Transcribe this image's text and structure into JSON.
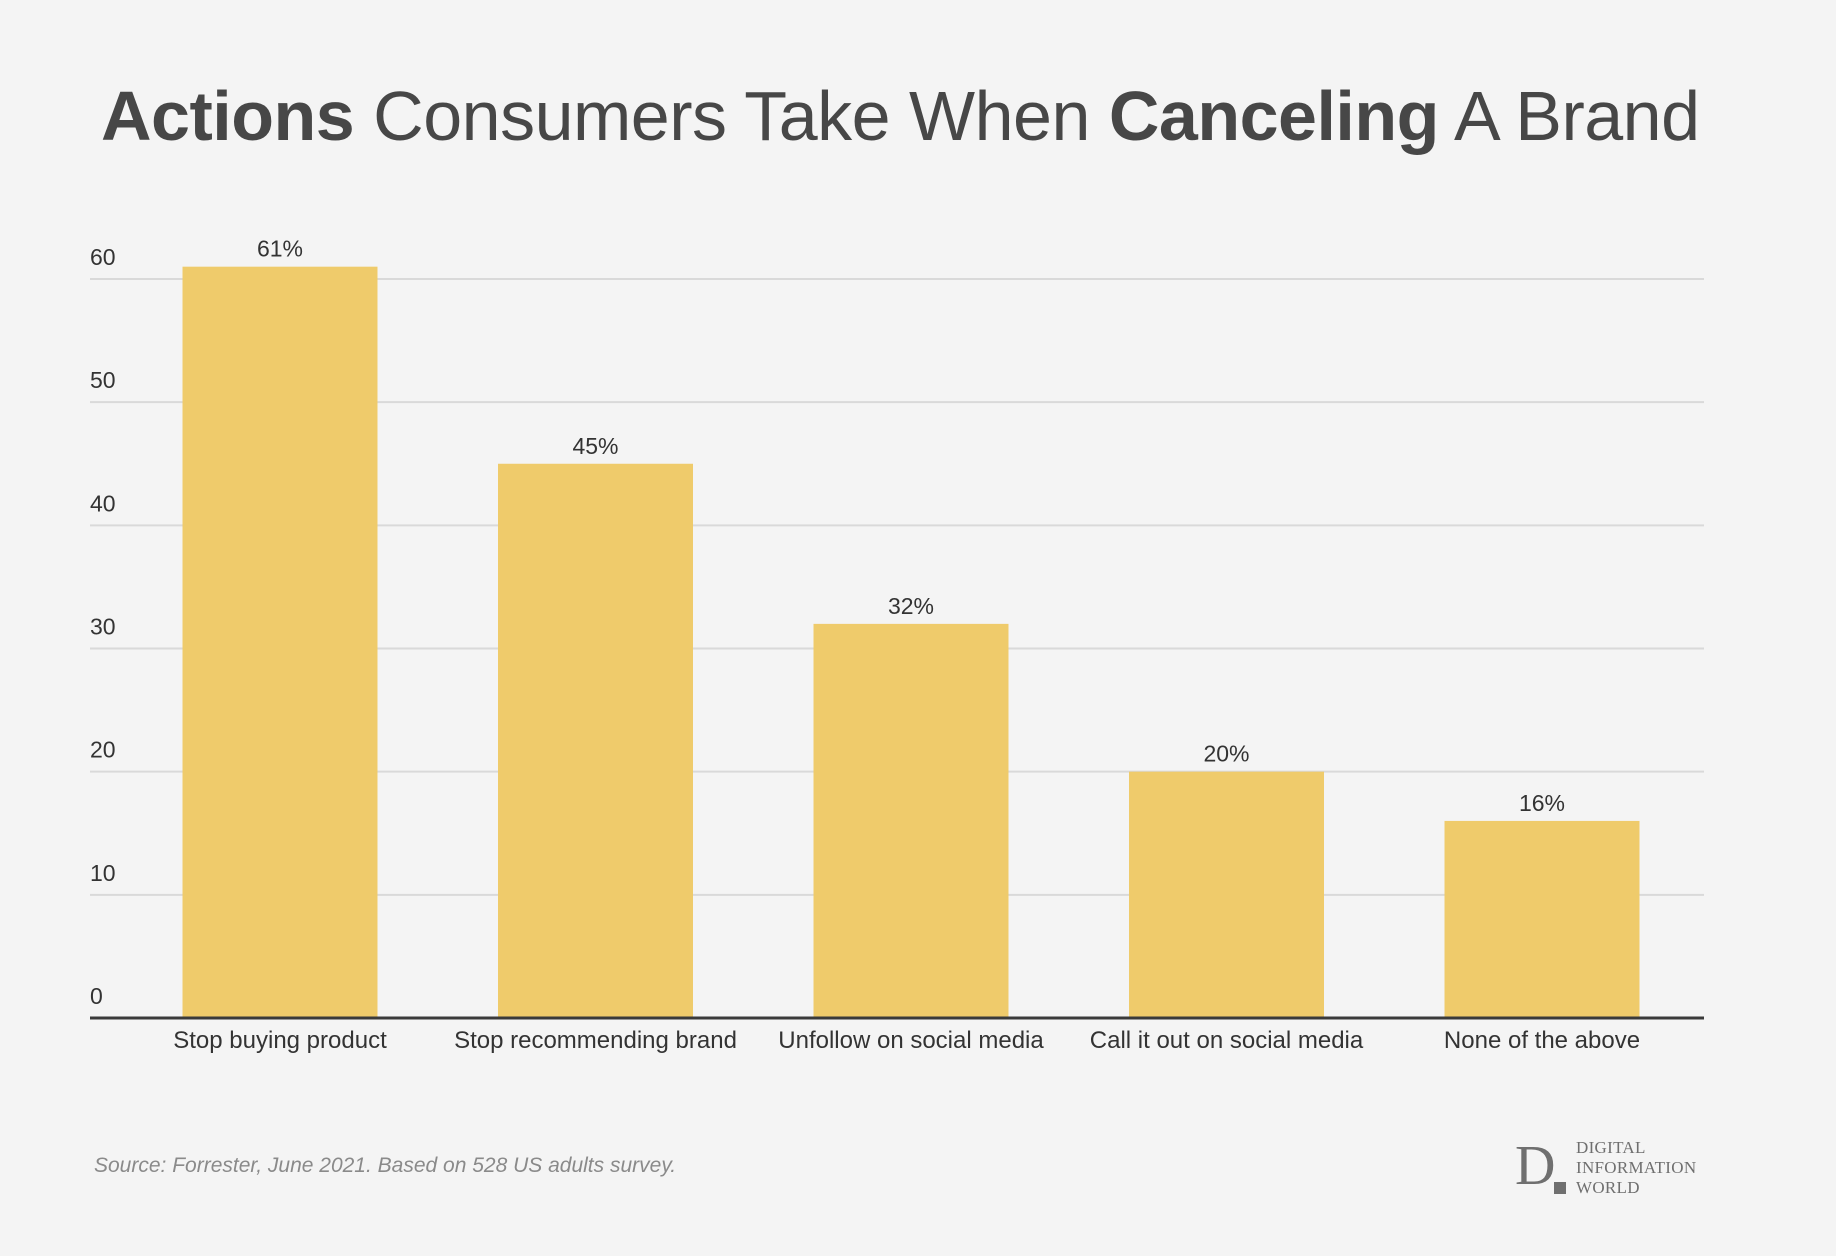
{
  "title": {
    "part1": "Actions",
    "part2": " Consumers Take When ",
    "part3": "Canceling",
    "part4": " A Brand"
  },
  "source": "Source: Forrester, June 2021. Based on 528 US adults survey.",
  "brand": {
    "letter": "D",
    "line1": "DIGITAL",
    "line2": "INFORMATION",
    "line3": "WORLD"
  },
  "colors": {
    "background": "#f4f4f4",
    "bar": "#efcb6b",
    "grid": "#d9d9d9",
    "axis": "#3a3a3a",
    "text": "#333333"
  },
  "chart_data": {
    "type": "bar",
    "title": "Actions Consumers Take When Canceling A Brand",
    "xlabel": "",
    "ylabel": "",
    "categories": [
      "Stop buying product",
      "Stop recommending brand",
      "Unfollow on social media",
      "Call it out on social media",
      "None of the above"
    ],
    "values": [
      61,
      45,
      32,
      20,
      16
    ],
    "data_labels": [
      "61%",
      "45%",
      "32%",
      "20%",
      "16%"
    ],
    "ylim": [
      0,
      60
    ],
    "yticks": [
      0,
      10,
      20,
      30,
      40,
      50,
      60
    ],
    "grid": true,
    "legend": "none"
  }
}
